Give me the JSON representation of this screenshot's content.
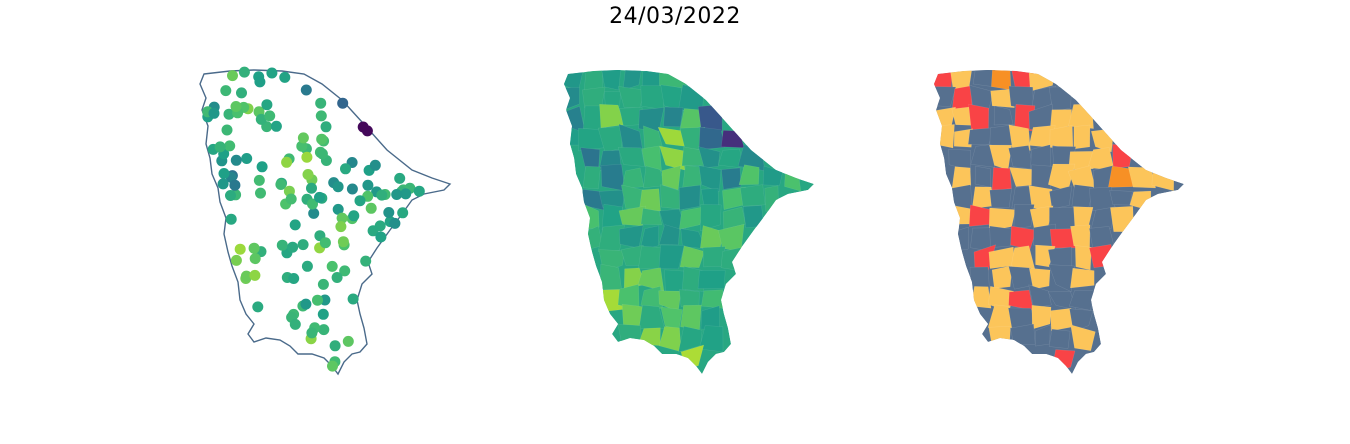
{
  "figure": {
    "title": "24/03/2022"
  },
  "maps": [
    {
      "id": "stations",
      "type": "point-map",
      "outline_color": "#4a6a8a",
      "colormap": "viridis"
    },
    {
      "id": "interpolated",
      "type": "choropleth",
      "colormap": "viridis"
    },
    {
      "id": "classified",
      "type": "choropleth",
      "class_colors": [
        "#56708f",
        "#fcc55a",
        "#f94346",
        "#f79025"
      ]
    }
  ]
}
